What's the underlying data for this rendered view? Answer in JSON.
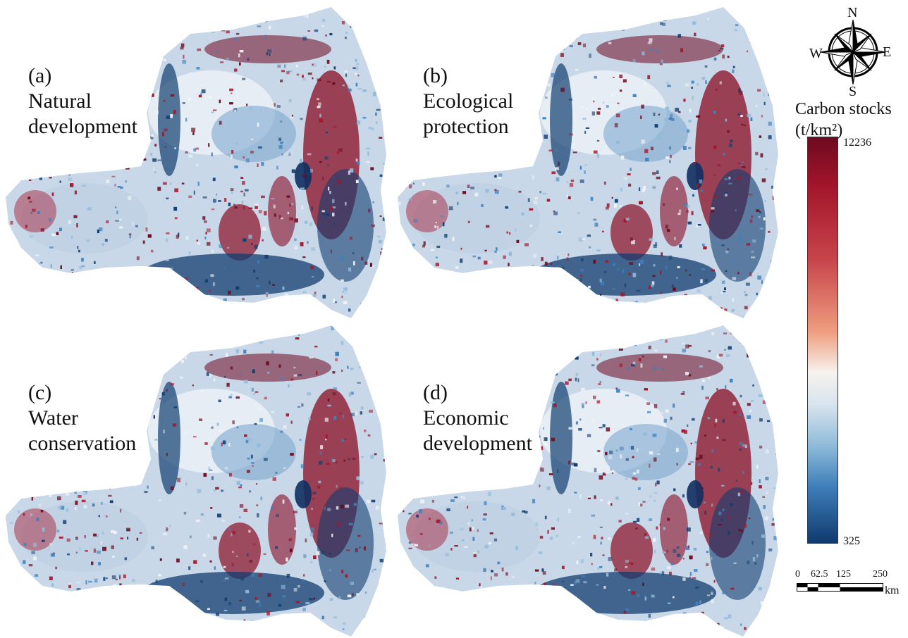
{
  "panels": [
    {
      "id": "a",
      "letter": "(a)",
      "line1": "Natural",
      "line2": "development"
    },
    {
      "id": "b",
      "letter": "(b)",
      "line1": "Ecological",
      "line2": "protection"
    },
    {
      "id": "c",
      "letter": "(c)",
      "line1": "Water",
      "line2": "conservation"
    },
    {
      "id": "d",
      "letter": "(d)",
      "line1": "Economic",
      "line2": "development"
    }
  ],
  "compass": {
    "n": "N",
    "s": "S",
    "e": "E",
    "w": "W"
  },
  "legend": {
    "title_line1": "Carbon stocks",
    "title_line2": "(t/km²)",
    "max": "12236",
    "min": "325",
    "colors": {
      "high": "#6e0a1f",
      "mid": "#f6f2ee",
      "low": "#0f3a6e"
    }
  },
  "scale_bar": {
    "ticks": [
      "0",
      "62.5",
      "125",
      "250"
    ],
    "unit": "km"
  }
}
